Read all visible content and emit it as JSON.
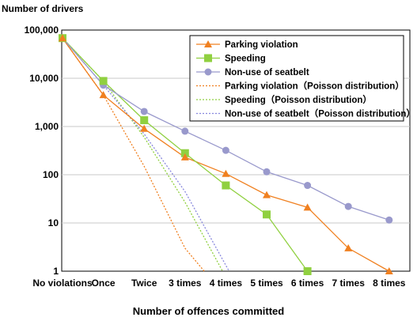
{
  "chart_data": {
    "type": "line",
    "ylabel": "Number of drivers",
    "xlabel": "Number of offences committed",
    "yscale": "log",
    "ylim": [
      1,
      100000
    ],
    "yticks": [
      {
        "value": 1,
        "label": "1"
      },
      {
        "value": 10,
        "label": "10"
      },
      {
        "value": 100,
        "label": "100"
      },
      {
        "value": 1000,
        "label": "1,000"
      },
      {
        "value": 10000,
        "label": "10,000"
      },
      {
        "value": 100000,
        "label": "100,000"
      }
    ],
    "categories": [
      "No violations",
      "Once",
      "Twice",
      "3 times",
      "4 times",
      "5 times",
      "6 times",
      "7 times",
      "8 times"
    ],
    "grid": "horizontal",
    "legend_position": "top-right",
    "series": [
      {
        "name": "Parking violation",
        "kind": "observed",
        "marker": "triangle",
        "color": "#f08020",
        "x": [
          0,
          1,
          2,
          3,
          4,
          5,
          6,
          7,
          8
        ],
        "values": [
          68000,
          4500,
          900,
          230,
          105,
          38,
          21,
          3,
          1
        ]
      },
      {
        "name": "Speeding",
        "kind": "observed",
        "marker": "square",
        "color": "#90d040",
        "x": [
          0,
          1,
          2,
          3,
          4,
          5,
          6
        ],
        "values": [
          68000,
          8800,
          1350,
          280,
          60,
          15,
          1
        ]
      },
      {
        "name": "Non-use of seatbelt",
        "kind": "observed",
        "marker": "circle",
        "color": "#9999cc",
        "x": [
          0,
          1,
          2,
          3,
          4,
          5,
          6,
          7,
          8
        ],
        "values": [
          68000,
          7200,
          2050,
          800,
          320,
          115,
          60,
          22,
          11.5
        ]
      },
      {
        "name": "Parking violation（Poisson distribution）",
        "kind": "poisson",
        "color": "#f08020",
        "x": [
          0,
          1,
          2,
          3,
          3.47
        ],
        "values": [
          68000,
          4500,
          150,
          3,
          1
        ]
      },
      {
        "name": "Speeding（Poisson distribution）",
        "kind": "poisson",
        "color": "#90d040",
        "x": [
          0,
          1,
          2,
          3,
          3.92
        ],
        "values": [
          68000,
          8800,
          600,
          27,
          1
        ]
      },
      {
        "name": "Non-use of seatbelt（Poisson distribution）",
        "kind": "poisson",
        "color": "#8888dd",
        "x": [
          0,
          1,
          2,
          3,
          4.08
        ],
        "values": [
          68000,
          7200,
          700,
          45,
          1
        ]
      }
    ]
  }
}
